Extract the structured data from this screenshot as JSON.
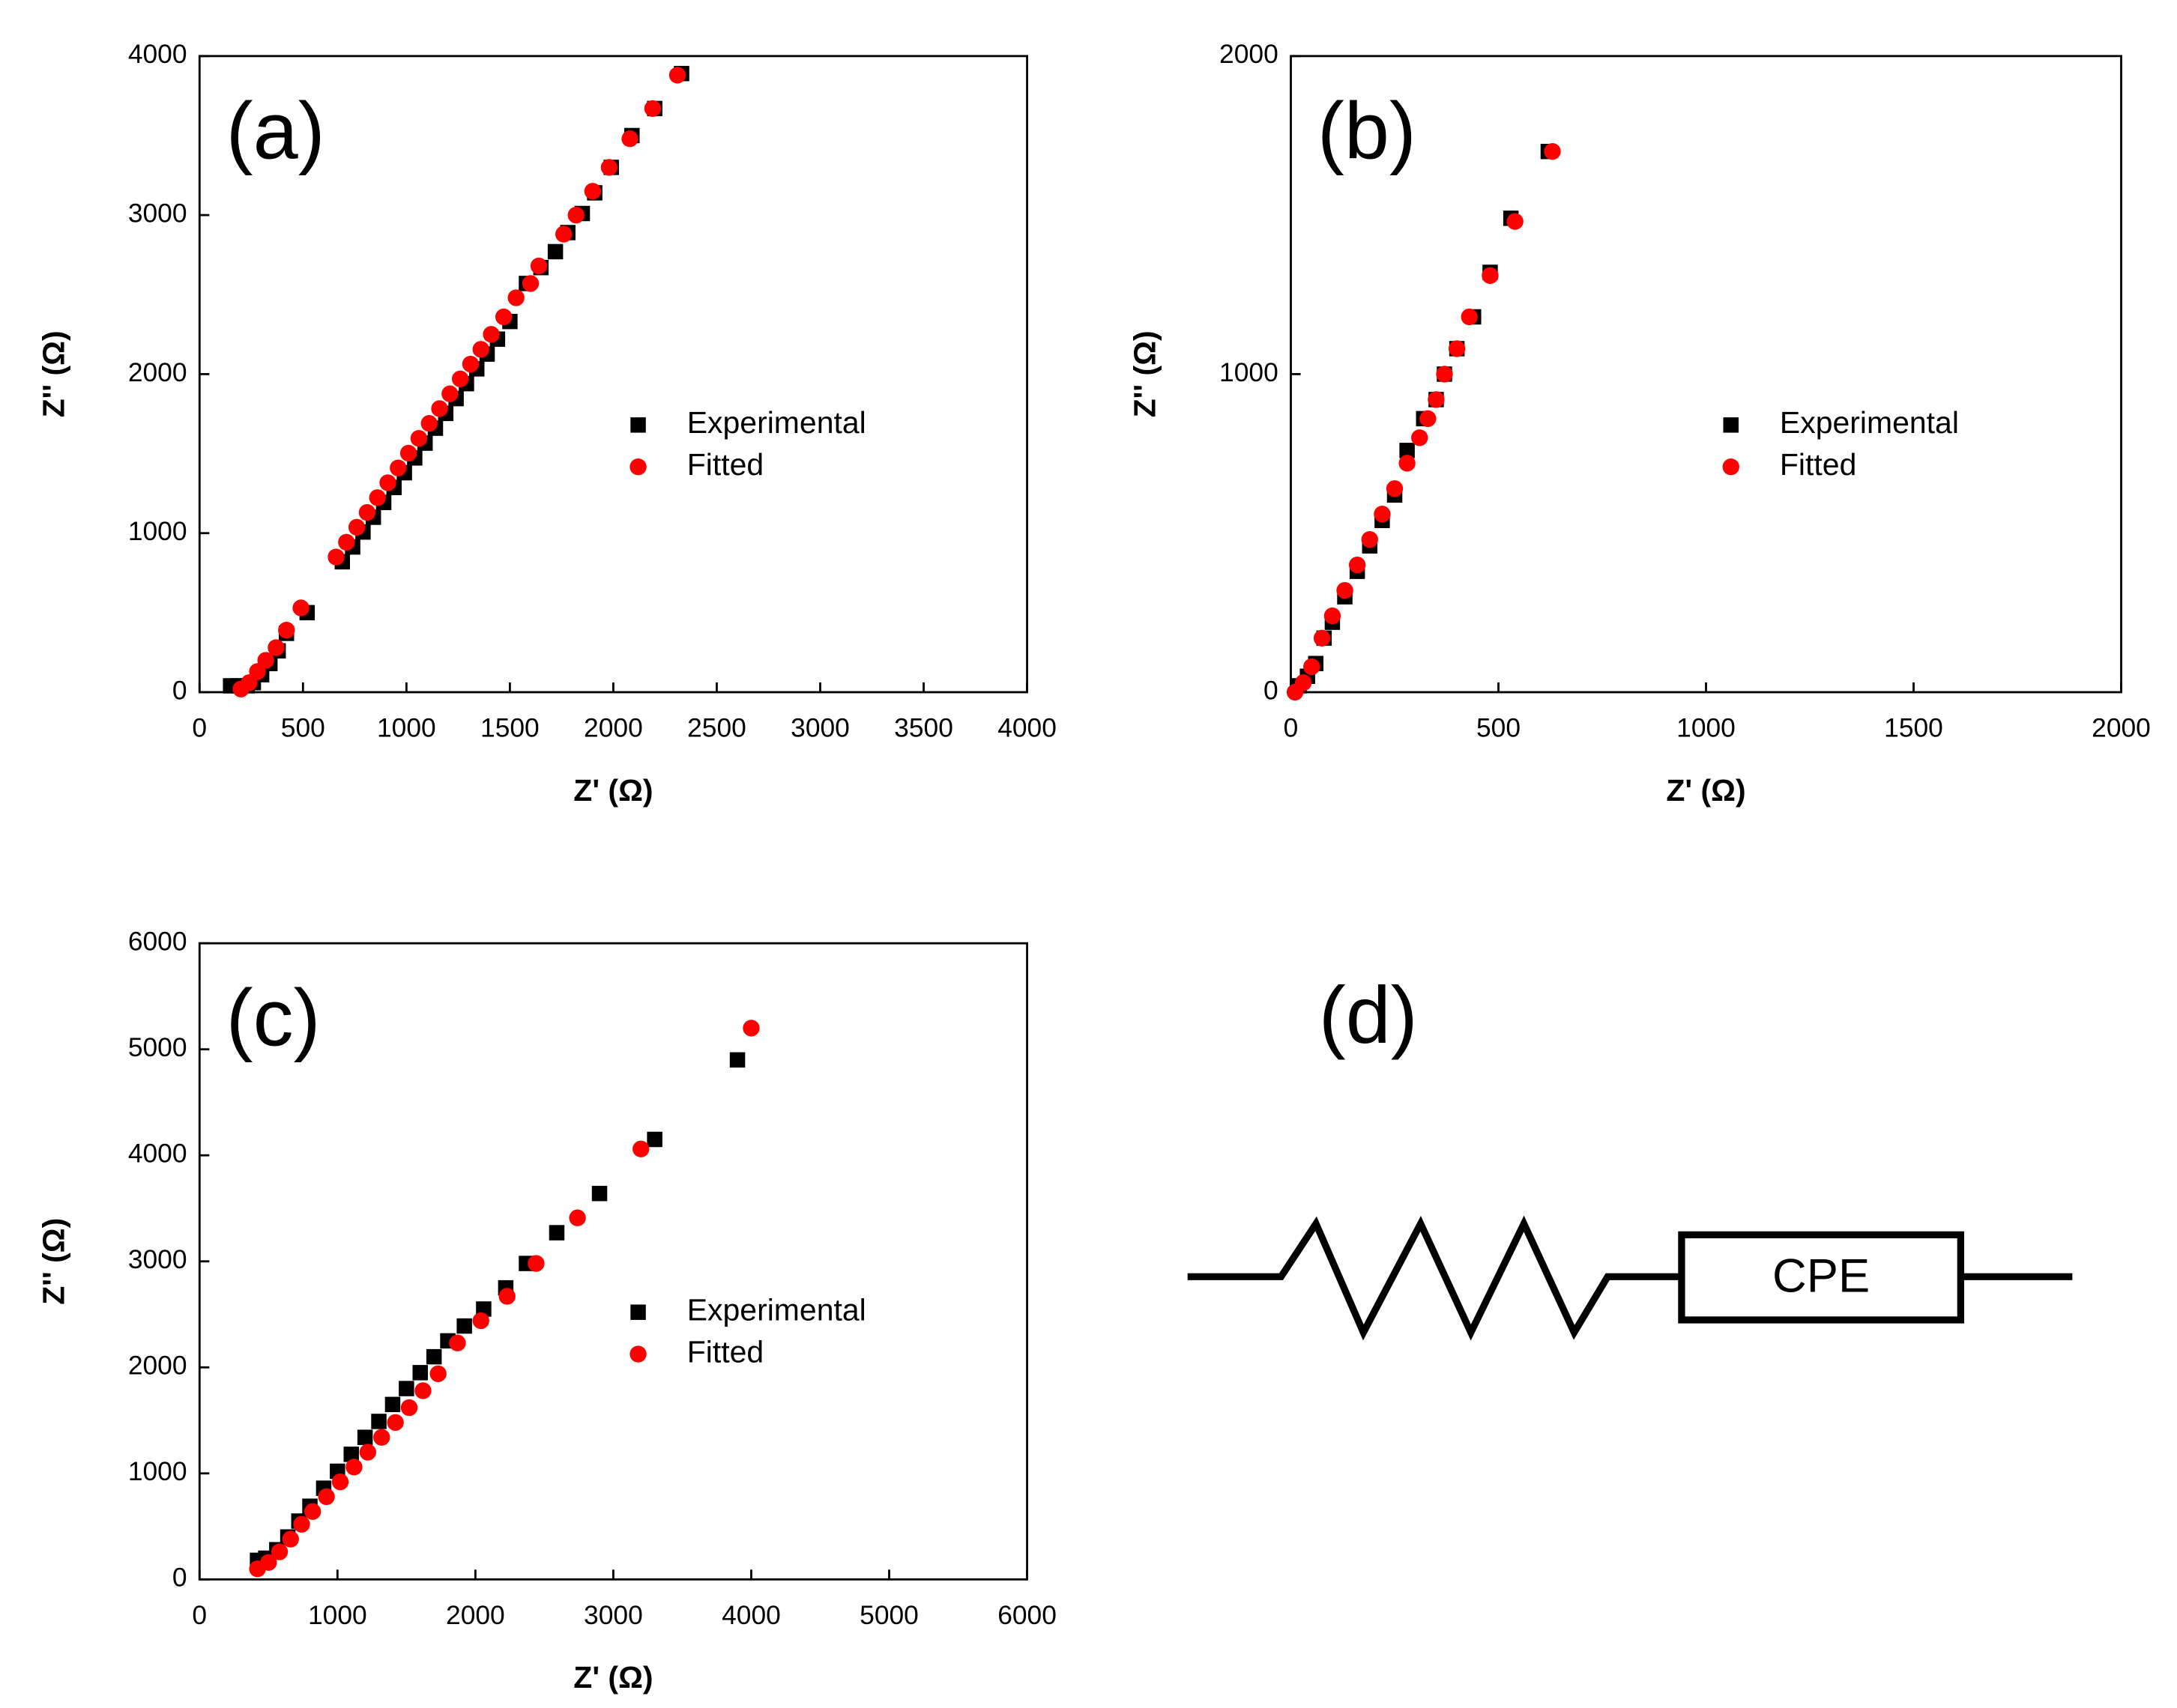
{
  "chart_data": [
    {
      "type": "scatter",
      "annotation": "(a)",
      "x_label": "Z' (Ω)",
      "y_label": "Z'' (Ω)",
      "legend": "center right",
      "xlim": [
        0,
        4000
      ],
      "xticks": [
        0,
        500,
        1000,
        1500,
        2000,
        2500,
        3000,
        3500,
        4000
      ],
      "ylim": [
        0,
        4000
      ],
      "yticks": [
        0,
        1000,
        2000,
        3000,
        4000
      ],
      "series": [
        {
          "name": "Experimental",
          "color": "#000000",
          "marker": "square",
          "x": [
            150,
            190,
            230,
            260,
            300,
            340,
            380,
            420,
            520,
            690,
            740,
            790,
            840,
            890,
            940,
            990,
            1040,
            1090,
            1140,
            1190,
            1240,
            1290,
            1340,
            1390,
            1440,
            1500,
            1580,
            1650,
            1720,
            1780,
            1850,
            1910,
            1990,
            2090,
            2200,
            2330
          ],
          "values": [
            40,
            40,
            40,
            60,
            110,
            180,
            260,
            370,
            500,
            820,
            913,
            1007,
            1100,
            1193,
            1287,
            1380,
            1473,
            1566,
            1660,
            1753,
            1846,
            1940,
            2033,
            2126,
            2220,
            2331,
            2570,
            2670,
            2770,
            2890,
            3010,
            3140,
            3300,
            3500,
            3670,
            3890
          ]
        },
        {
          "name": "Fitted",
          "color": "#ff0000",
          "marker": "circle",
          "x": [
            200,
            240,
            280,
            320,
            370,
            420,
            490,
            660,
            710,
            760,
            810,
            860,
            910,
            960,
            1010,
            1060,
            1110,
            1160,
            1210,
            1260,
            1310,
            1360,
            1410,
            1470,
            1530,
            1600,
            1640,
            1760,
            1820,
            1900,
            1980,
            2080,
            2190,
            2310
          ],
          "values": [
            20,
            60,
            130,
            200,
            280,
            390,
            530,
            850,
            943,
            1037,
            1130,
            1223,
            1317,
            1410,
            1503,
            1596,
            1690,
            1783,
            1876,
            1970,
            2063,
            2156,
            2250,
            2360,
            2480,
            2570,
            2680,
            2880,
            3000,
            3150,
            3300,
            3480,
            3670,
            3880
          ]
        }
      ]
    },
    {
      "type": "scatter",
      "annotation": "(b)",
      "x_label": "Z' (Ω)",
      "y_label": "Z'' (Ω)",
      "legend": "center right",
      "xlim": [
        0,
        2000
      ],
      "xticks": [
        0,
        500,
        1000,
        1500,
        2000
      ],
      "ylim": [
        0,
        2000
      ],
      "yticks": [
        0,
        1000,
        2000
      ],
      "series": [
        {
          "name": "Experimental",
          "color": "#000000",
          "marker": "square",
          "x": [
            20,
            40,
            60,
            80,
            100,
            130,
            160,
            190,
            220,
            250,
            280,
            320,
            350,
            370,
            400,
            440,
            480,
            530,
            620
          ],
          "values": [
            20,
            50,
            90,
            170,
            220,
            300,
            380,
            460,
            540,
            620,
            760,
            860,
            920,
            1000,
            1080,
            1180,
            1320,
            1490,
            1700
          ]
        },
        {
          "name": "Fitted",
          "color": "#ff0000",
          "marker": "circle",
          "x": [
            10,
            30,
            50,
            75,
            100,
            130,
            160,
            190,
            220,
            250,
            280,
            310,
            330,
            350,
            370,
            400,
            430,
            480,
            540,
            630
          ],
          "values": [
            0,
            30,
            80,
            170,
            240,
            320,
            400,
            480,
            560,
            640,
            720,
            800,
            860,
            920,
            1000,
            1080,
            1180,
            1310,
            1480,
            1700
          ]
        }
      ]
    },
    {
      "type": "scatter",
      "annotation": "(c)",
      "x_label": "Z' (Ω)",
      "y_label": "Z'' (Ω)",
      "legend": "center right",
      "xlim": [
        0,
        6000
      ],
      "xticks": [
        0,
        1000,
        2000,
        3000,
        4000,
        5000,
        6000
      ],
      "ylim": [
        0,
        6000
      ],
      "yticks": [
        0,
        1000,
        2000,
        3000,
        4000,
        5000,
        6000
      ],
      "series": [
        {
          "name": "Experimental",
          "color": "#000000",
          "marker": "square",
          "x": [
            420,
            480,
            560,
            640,
            720,
            800,
            900,
            1000,
            1100,
            1200,
            1300,
            1400,
            1500,
            1600,
            1700,
            1800,
            1920,
            2060,
            2220,
            2370,
            2590,
            2900,
            3300,
            3900
          ],
          "values": [
            180,
            200,
            280,
            400,
            550,
            690,
            860,
            1020,
            1180,
            1340,
            1490,
            1650,
            1800,
            1950,
            2100,
            2250,
            2390,
            2550,
            2750,
            2980,
            3270,
            3640,
            4150,
            4900
          ]
        },
        {
          "name": "Fitted",
          "color": "#ff0000",
          "marker": "circle",
          "x": [
            420,
            500,
            580,
            660,
            740,
            820,
            920,
            1020,
            1120,
            1220,
            1320,
            1420,
            1520,
            1620,
            1730,
            1870,
            2040,
            2230,
            2440,
            2740,
            3200,
            4000
          ],
          "values": [
            100,
            160,
            260,
            380,
            520,
            640,
            780,
            920,
            1060,
            1200,
            1340,
            1480,
            1620,
            1780,
            1940,
            2230,
            2440,
            2670,
            2980,
            3410,
            4060,
            5200
          ]
        }
      ]
    }
  ],
  "diagram": {
    "label": "(d)",
    "element": "CPE"
  }
}
